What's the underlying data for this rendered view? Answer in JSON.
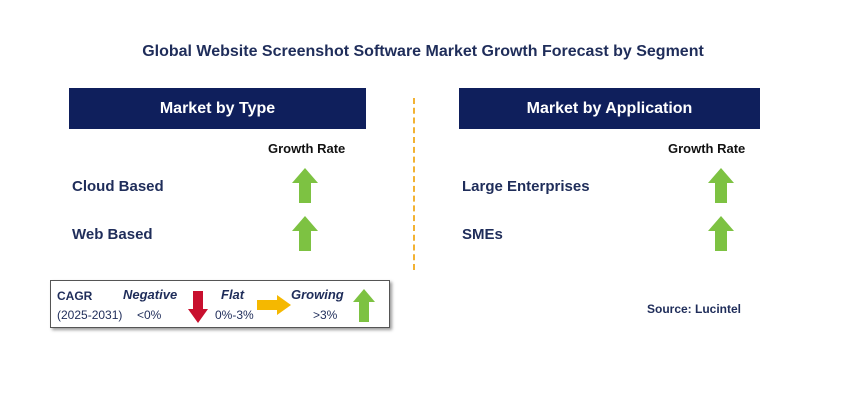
{
  "title": "Global Website Screenshot Software Market Growth Forecast by Segment",
  "left_panel": {
    "header": "Market by Type",
    "growth_header": "Growth Rate",
    "rows": [
      {
        "label": "Cloud Based",
        "trend": "growing"
      },
      {
        "label": "Web Based",
        "trend": "growing"
      }
    ]
  },
  "right_panel": {
    "header": "Market by Application",
    "growth_header": "Growth Rate",
    "rows": [
      {
        "label": "Large Enterprises",
        "trend": "growing"
      },
      {
        "label": "SMEs",
        "trend": "growing"
      }
    ]
  },
  "legend": {
    "cagr_label": "CAGR",
    "period": "(2025-2031)",
    "negative": {
      "label": "Negative",
      "range": "<0%",
      "icon": "red-down-arrow-icon"
    },
    "flat": {
      "label": "Flat",
      "range": "0%-3%",
      "icon": "yellow-right-arrow-icon"
    },
    "growing": {
      "label": "Growing",
      "range": ">3%",
      "icon": "green-up-arrow-icon"
    }
  },
  "source": "Source: Lucintel",
  "colors": {
    "header_bg": "#0f1f5c",
    "text": "#1f2d5a",
    "growing": "#7dc242",
    "negative": "#c8102e",
    "flat": "#f5b800",
    "divider": "#f2b233"
  }
}
